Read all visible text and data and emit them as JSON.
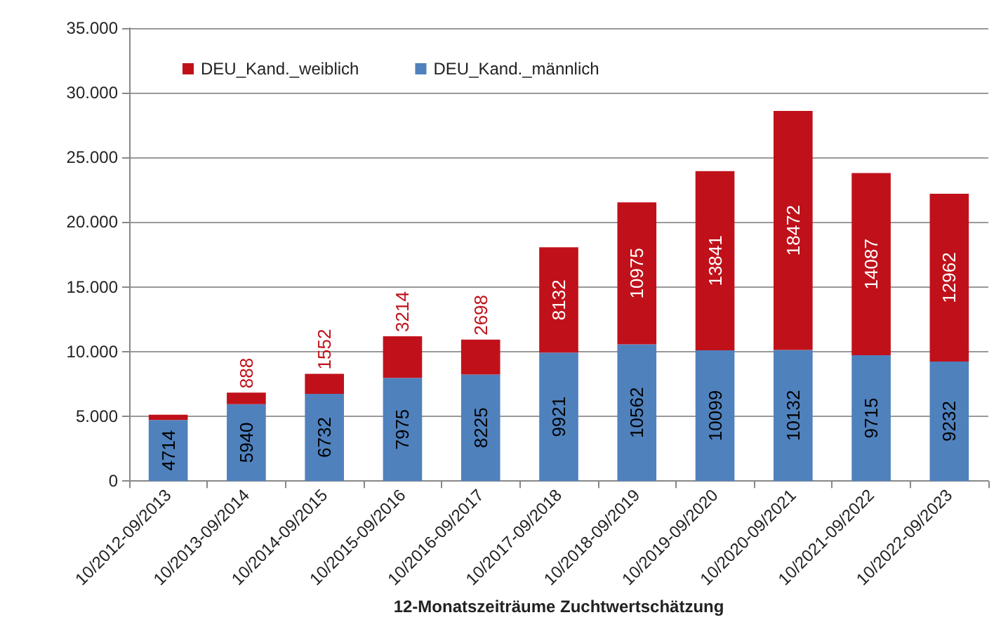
{
  "chart_data": {
    "type": "bar",
    "stacked": true,
    "xlabel": "12-Monatszeiträume Zuchtwertschätzung",
    "categories": [
      "10/2012-09/2013",
      "10/2013-09/2014",
      "10/2014-09/2015",
      "10/2015-09/2016",
      "10/2016-09/2017",
      "10/2017-09/2018",
      "10/2018-09/2019",
      "10/2019-09/2020",
      "10/2020-09/2021",
      "10/2021-09/2022",
      "10/2022-09/2023"
    ],
    "series": [
      {
        "name": "DEU_Kand._männlich",
        "color": "#4f81bd",
        "values": [
          4714,
          5940,
          6732,
          7975,
          8225,
          9921,
          10562,
          10099,
          10132,
          9715,
          9232
        ],
        "value_labels": [
          "4714",
          "5940",
          "6732",
          "7975",
          "8225",
          "9921",
          "10562",
          "10099",
          "10132",
          "9715",
          "9232"
        ]
      },
      {
        "name": "DEU_Kand._weiblich",
        "color": "#c0111a",
        "values": [
          400,
          888,
          1552,
          3214,
          2698,
          8132,
          10975,
          13841,
          18472,
          14087,
          12962
        ],
        "value_labels": [
          null,
          "888",
          "1552",
          "3214",
          "2698",
          "8132",
          "10975",
          "13841",
          "18472",
          "14087",
          "12962"
        ]
      }
    ],
    "ylim": [
      0,
      35000
    ],
    "yticks": [
      0,
      {
        "value": 5000,
        "label": "5.000"
      },
      {
        "value": 10000,
        "label": "10.000"
      },
      {
        "value": 15000,
        "label": "15.000"
      },
      {
        "value": 20000,
        "label": "20.000"
      },
      {
        "value": 25000,
        "label": "25.000"
      },
      {
        "value": 30000,
        "label": "30.000"
      },
      {
        "value": 35000,
        "label": "35.000"
      }
    ],
    "grid": "y",
    "legend": "top left"
  }
}
